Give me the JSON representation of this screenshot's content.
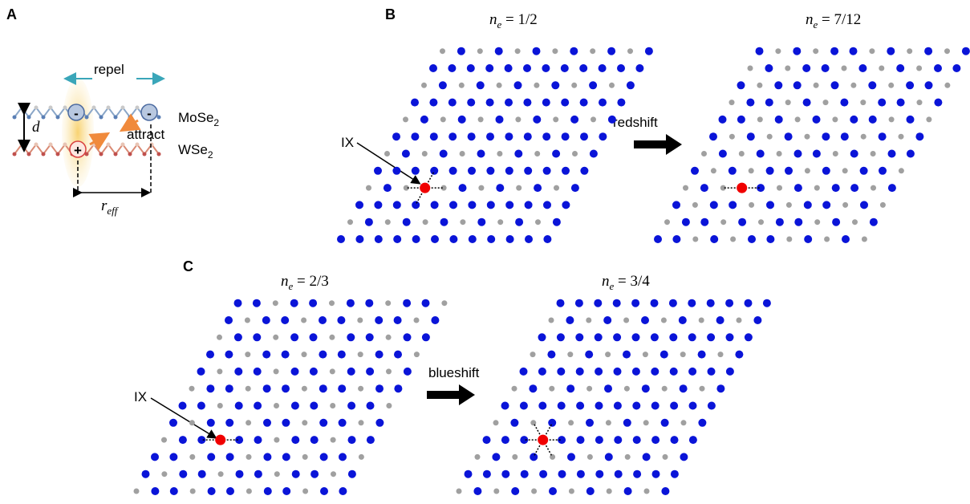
{
  "panels": {
    "a": {
      "label": "A",
      "repel": "repel",
      "attract": "attract",
      "minus": "-",
      "plus": "+",
      "top_layer": {
        "base": "MoSe",
        "sub": "2"
      },
      "bottom_layer": {
        "base": "WSe",
        "sub": "2"
      },
      "distance": "d",
      "radius": {
        "base": "r",
        "sub": "eff"
      }
    },
    "b": {
      "label": "B",
      "left_filling": {
        "var": "n",
        "sub": "e",
        "rest": " = 1/2"
      },
      "right_filling": {
        "var": "n",
        "sub": "e",
        "rest": " = 7/12"
      },
      "exciton": "IX",
      "arrow_label": "redshift"
    },
    "c": {
      "label": "C",
      "left_filling": {
        "var": "n",
        "sub": "e",
        "rest": " = 2/3"
      },
      "right_filling": {
        "var": "n",
        "sub": "e",
        "rest": " = 3/4"
      },
      "exciton": "IX",
      "arrow_label": "blueshift"
    }
  }
}
